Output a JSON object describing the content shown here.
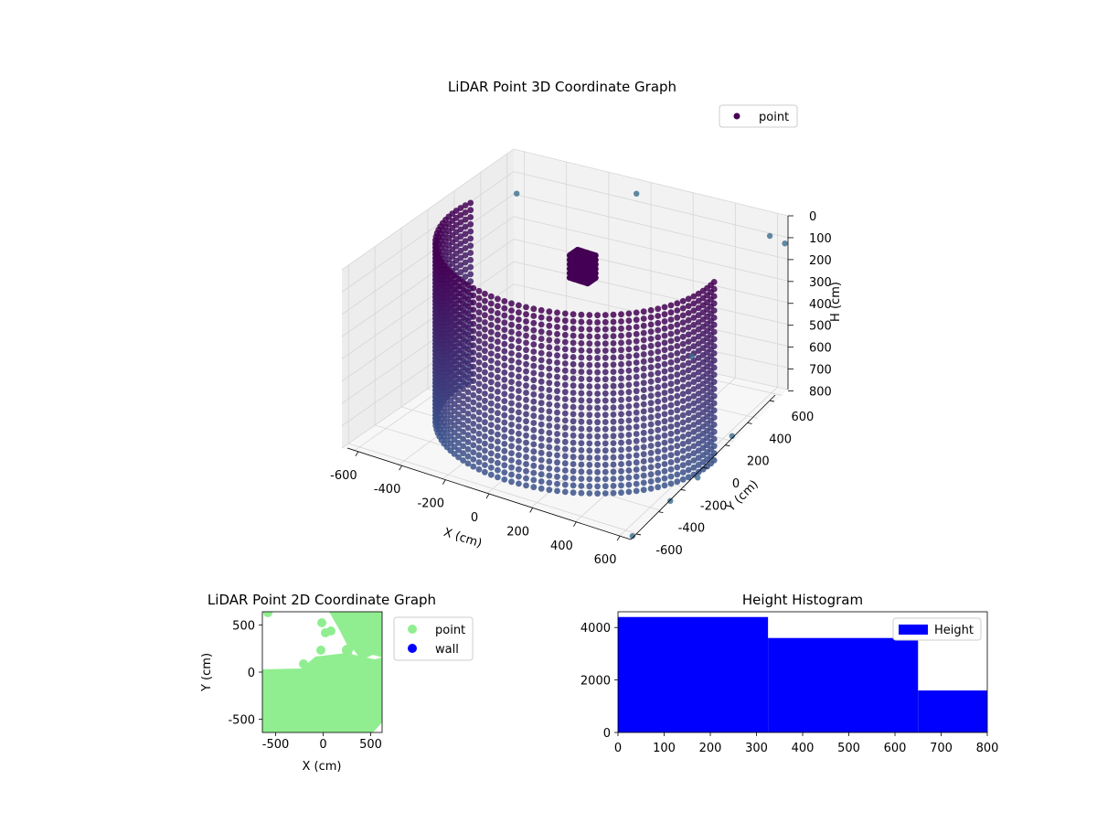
{
  "chart_data": [
    {
      "type": "scatter",
      "projection": "3d",
      "title": "LiDAR Point 3D Coordinate Graph",
      "xlabel": "X (cm)",
      "ylabel": "Y (cm)",
      "zlabel": "H (cm)",
      "xlim": [
        -650,
        650
      ],
      "ylim": [
        -650,
        650
      ],
      "zlim": [
        800,
        0
      ],
      "xticks": [
        "-600",
        "-400",
        "-200",
        "0",
        "200",
        "400",
        "600"
      ],
      "yticks": [
        "-600",
        "-400",
        "-200",
        "0",
        "200",
        "400",
        "600"
      ],
      "zticks": [
        "0",
        "100",
        "200",
        "300",
        "400",
        "500",
        "600",
        "700",
        "800"
      ],
      "legend": {
        "entries": [
          "point"
        ],
        "placement": "top-right"
      },
      "colormap": "viridis",
      "grid": true,
      "shapes": {
        "wall_ring": {
          "radius_cm": 560,
          "angle_from_deg": -10,
          "angle_to_deg": 190,
          "height_top_cm": 0,
          "height_bottom_cm": 800
        },
        "column": {
          "center": [
            -120,
            280
          ],
          "height_top_cm": 150,
          "height_bottom_cm": 250
        }
      }
    },
    {
      "type": "scatter",
      "title": "LiDAR Point 2D Coordinate Graph",
      "xlabel": "X (cm)",
      "ylabel": "Y (cm)",
      "xlim": [
        -640,
        620
      ],
      "ylim": [
        -640,
        640
      ],
      "xticks": [
        -500,
        0,
        500
      ],
      "yticks": [
        -500,
        0,
        500
      ],
      "legend": {
        "entries": [
          {
            "name": "point",
            "color": "#90ee90"
          },
          {
            "name": "wall",
            "color": "#0000ff"
          }
        ],
        "placement": "outside-right"
      },
      "series": [
        {
          "name": "point",
          "color": "#90ee90",
          "region": "lower-half filled with upper-right lobe"
        },
        {
          "name": "wall",
          "color": "#0000ff",
          "points": []
        }
      ]
    },
    {
      "type": "bar",
      "subtype": "histogram",
      "title": "Height Histogram",
      "xlim": [
        0,
        800
      ],
      "ylim": [
        0,
        4600
      ],
      "xticks": [
        0,
        100,
        200,
        300,
        400,
        500,
        600,
        700,
        800
      ],
      "yticks": [
        0,
        2000,
        4000
      ],
      "legend": {
        "entries": [
          "Height"
        ],
        "placement": "top-right"
      },
      "bins": [
        {
          "from": 0,
          "to": 325,
          "value": 4400
        },
        {
          "from": 325,
          "to": 650,
          "value": 3600
        },
        {
          "from": 650,
          "to": 800,
          "value": 1600
        }
      ],
      "color": "#0000ff"
    }
  ]
}
